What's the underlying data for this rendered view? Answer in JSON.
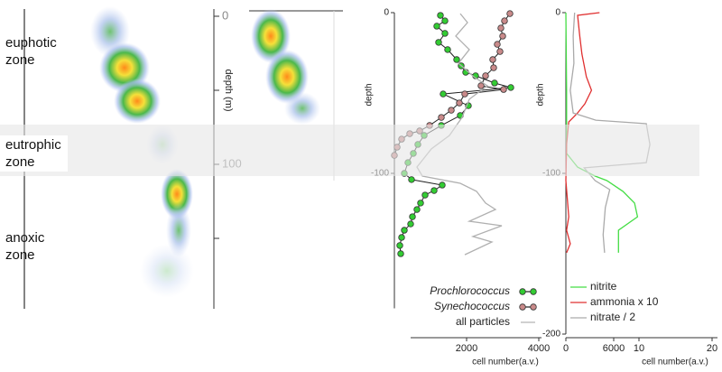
{
  "zones": [
    "euphotic zone",
    "eutrophic zone",
    "anoxic zone"
  ],
  "chart_data": [
    {
      "type": "density",
      "ylabel": "depth (m)",
      "ylim": [
        0,
        200
      ],
      "yticks": [
        0,
        100
      ]
    },
    {
      "type": "line",
      "ylabel": "depth",
      "xlabel": "cell number(a.v.)",
      "xlim": [
        0,
        4000
      ],
      "xticks": [
        2000,
        4000
      ],
      "ylim": [
        -184,
        0
      ],
      "yticks": [
        0,
        -100
      ],
      "series": [
        {
          "name": "Prochlorococcus",
          "font_style": "italic",
          "color": "#33cc33",
          "line_color": "#222222",
          "marker": true,
          "x": [
            1275,
            1400,
            1175,
            1400,
            1225,
            1475,
            1725,
            1850,
            1975,
            2250,
            2775,
            3225,
            1350,
            2050,
            1825,
            1300,
            825,
            650,
            525,
            375,
            275,
            475,
            1325,
            1100,
            850,
            725,
            625,
            500,
            450,
            275,
            200,
            150,
            175
          ],
          "y": [
            -1.7,
            -5.1,
            -8.4,
            -12.9,
            -18.5,
            -23.0,
            -29.2,
            -33.1,
            -37.1,
            -39.3,
            -43.8,
            -46.6,
            -50.6,
            -57.9,
            -64.0,
            -70.2,
            -76.4,
            -82.0,
            -87.6,
            -93.3,
            -100,
            -103.9,
            -107.3,
            -110.7,
            -113.5,
            -118.5,
            -122.5,
            -127.0,
            -131.5,
            -135.4,
            -139.9,
            -144.9,
            -150.0
          ]
        },
        {
          "name": "Synechococcus",
          "font_style": "italic",
          "color": "#c98a8a",
          "line_color": "#222222",
          "marker": true,
          "x": [
            3200,
            3050,
            2950,
            3000,
            2850,
            2925,
            2725,
            2750,
            2525,
            2400,
            3025,
            1950,
            1800,
            1575,
            1300,
            975,
            700,
            425,
            200,
            75,
            0
          ],
          "y": [
            -0.6,
            -5.1,
            -9.6,
            -14.6,
            -19.7,
            -24.2,
            -29.2,
            -34.3,
            -39.3,
            -45.5,
            -47.8,
            -50.6,
            -56.2,
            -60.7,
            -65.2,
            -70.2,
            -73.6,
            -75.3,
            -78.7,
            -83.7,
            -88.8
          ]
        },
        {
          "name": "all particles",
          "font_style": "normal",
          "color": "#b0b0b0",
          "line_color": "#b0b0b0",
          "marker": false,
          "x": [
            1825,
            2025,
            1700,
            2075,
            1775,
            2200,
            2575,
            2075,
            1875,
            1525,
            1025,
            625,
            775,
            1825,
            2275,
            2525,
            2800,
            2075,
            2975,
            2175,
            2700,
            1950
          ],
          "y": [
            -0.6,
            -6.2,
            -14.6,
            -23.0,
            -31.5,
            -39.9,
            -45.5,
            -53.9,
            -65.2,
            -76.4,
            -84.8,
            -96.1,
            -101.7,
            -106.2,
            -111.2,
            -118.5,
            -122.5,
            -129.8,
            -132.6,
            -139.3,
            -142.7,
            -150.6
          ]
        }
      ]
    },
    {
      "type": "line",
      "ylabel": "depth",
      "xlabel": "cell number(a.v.)",
      "xlim": [
        0,
        20
      ],
      "xticks": [
        0,
        10,
        20
      ],
      "x2lim": [
        0,
        12000
      ],
      "x2ticks": [
        6000
      ],
      "ylim": [
        -200,
        0
      ],
      "yticks": [
        0,
        -100,
        -200
      ],
      "series": [
        {
          "name": "nitrite",
          "font_style": "normal",
          "color": "#44dd44",
          "line_color": "#44dd44",
          "marker": false,
          "x": [
            0,
            0.1,
            0.1,
            1.6,
            4.0,
            5.6,
            7.8,
            9.4,
            9.8,
            7.2,
            7.2
          ],
          "y": [
            0,
            -48.3,
            -87.6,
            -96.1,
            -101.7,
            -104.5,
            -111.2,
            -118.5,
            -127.0,
            -135.4,
            -149.4
          ]
        },
        {
          "name": "ammonia x 10",
          "font_style": "normal",
          "color": "#e03030",
          "line_color": "#e03030",
          "marker": false,
          "x": [
            4.6,
            1.6,
            1.9,
            2.2,
            2.8,
            3.5,
            2.6,
            1.6,
            0.4,
            0.1,
            0,
            0.4,
            0.1,
            0.6,
            0.1
          ],
          "y": [
            0,
            -1.7,
            -14.6,
            -25.8,
            -39.9,
            -48.3,
            -56.7,
            -62.4,
            -68.0,
            -82.0,
            -104.5,
            -127.0,
            -135.4,
            -143.8,
            -149.4
          ]
        },
        {
          "name": "nitrate / 2",
          "font_style": "normal",
          "color": "#aaaaaa",
          "line_color": "#aaaaaa",
          "marker": false,
          "x": [
            1.2,
            1.0,
            1.1,
            0.6,
            1.0,
            4.1,
            11.0,
            11.5,
            11.0,
            2.5,
            4.0,
            6.0,
            5.4,
            5.1,
            5.3
          ],
          "y": [
            0,
            -14.6,
            -31.5,
            -48.3,
            -62.4,
            -66.9,
            -69.1,
            -82.0,
            -93.3,
            -96.6,
            -104.5,
            -110.1,
            -121.3,
            -138.2,
            -149.4
          ]
        }
      ]
    }
  ]
}
